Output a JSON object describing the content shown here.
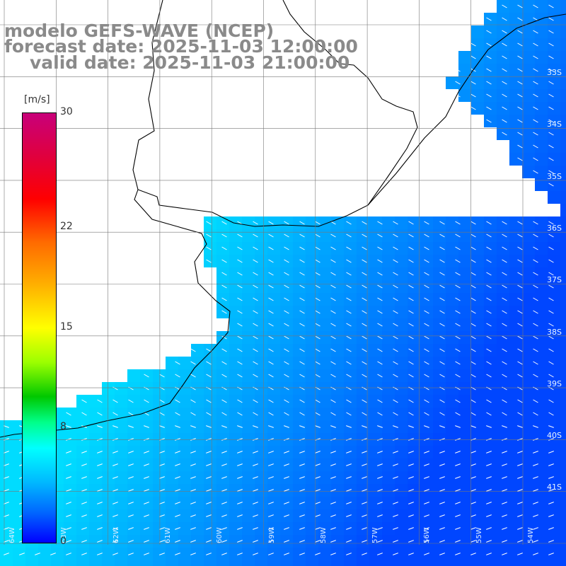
{
  "title": {
    "line1": "modelo GEFS-WAVE (NCEP)",
    "line2": "forecast date: 2025-11-03 12:00:00",
    "line3": "valid date: 2025-11-03 21:00:00"
  },
  "colorbar": {
    "unit": "[m/s]",
    "ticks": [
      "30",
      "22",
      "15",
      "8",
      "0"
    ],
    "tick_values": [
      30,
      22,
      15,
      8,
      0
    ],
    "range": [
      0,
      30
    ]
  },
  "lat_labels": [
    "33S",
    "34S",
    "35S",
    "36S",
    "37S",
    "38S",
    "39S",
    "40S",
    "41S"
  ],
  "lon_labels": [
    "64W",
    "63W",
    "62W",
    "61W",
    "60W",
    "59W",
    "58W",
    "57W",
    "56W",
    "55W",
    "54W"
  ],
  "colors": {
    "land": "#ffffff",
    "coastline": "#000000",
    "gridline": "#777777",
    "arrow": "#ffffff",
    "title": "#8a8a8a"
  }
}
